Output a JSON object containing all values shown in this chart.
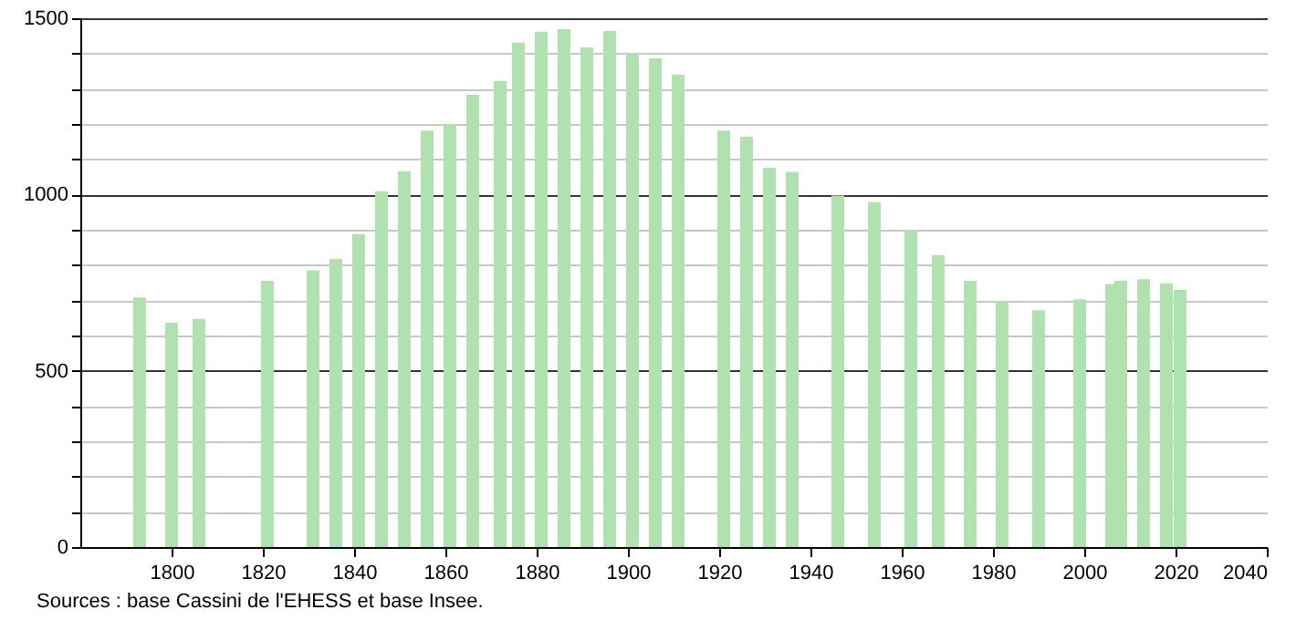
{
  "chart_data": {
    "type": "bar",
    "x": [
      1793,
      1800,
      1806,
      1821,
      1831,
      1836,
      1841,
      1846,
      1851,
      1856,
      1861,
      1866,
      1872,
      1876,
      1881,
      1886,
      1891,
      1896,
      1901,
      1906,
      1911,
      1921,
      1926,
      1931,
      1936,
      1946,
      1954,
      1962,
      1968,
      1975,
      1982,
      1990,
      1999,
      2006,
      2008,
      2013,
      2018,
      2021
    ],
    "series": [
      {
        "color": "#b0e2b0",
        "values": [
          708,
          636,
          647,
          755,
          785,
          817,
          888,
          1009,
          1066,
          1181,
          1199,
          1283,
          1322,
          1431,
          1462,
          1469,
          1417,
          1464,
          1400,
          1386,
          1340,
          1181,
          1164,
          1076,
          1064,
          997,
          978,
          897,
          828,
          755,
          697,
          672,
          703,
          746,
          755,
          760,
          748,
          729
        ]
      }
    ],
    "xlim": [
      1780,
      2040
    ],
    "xticks": [
      1800,
      1820,
      1840,
      1860,
      1880,
      1900,
      1920,
      1940,
      1960,
      1980,
      2000,
      2020,
      2040
    ],
    "ylim": [
      0,
      1500
    ],
    "yticks": [
      0,
      {
        "value": 100,
        "label": null
      },
      {
        "value": 200,
        "label": null
      },
      {
        "value": 300,
        "label": null
      },
      {
        "value": 400,
        "label": null
      },
      500,
      {
        "value": 600,
        "label": null
      },
      {
        "value": 700,
        "label": null
      },
      {
        "value": 800,
        "label": null
      },
      {
        "value": 900,
        "label": null
      },
      1000,
      {
        "value": 1100,
        "label": null
      },
      {
        "value": 1200,
        "label": null
      },
      {
        "value": 1300,
        "label": null
      },
      {
        "value": 1400,
        "label": null
      },
      1500
    ],
    "grid": "y",
    "annotations": [
      "Sources : base Cassini de l'EHESS et base Insee."
    ]
  }
}
